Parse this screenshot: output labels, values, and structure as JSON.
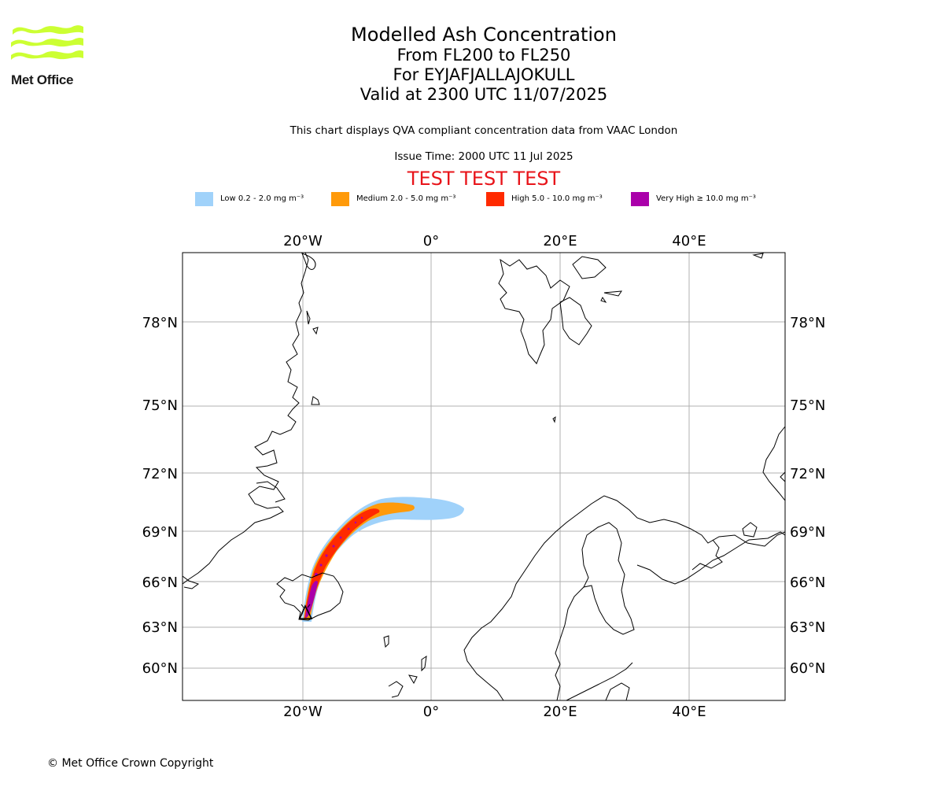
{
  "logo": {
    "text": "Met Office",
    "brand_color": "#ccff33"
  },
  "titles": {
    "main": "Modelled Ash Concentration",
    "levels": "From FL200 to FL250",
    "volcano": "For EYJAFJALLAJOKULL",
    "valid": "Valid at 2300 UTC 11/07/2025"
  },
  "description": "This chart displays QVA compliant concentration data from VAAC London",
  "issue_time": "Issue Time: 2000 UTC 11 Jul 2025",
  "test_banner": "TEST TEST TEST",
  "legend": [
    {
      "label": "Low 0.2 - 2.0 mg m⁻³",
      "color": "#a0d2fa"
    },
    {
      "label": "Medium 2.0 - 5.0 mg m⁻³",
      "color": "#ff9a0a"
    },
    {
      "label": "High 5.0 - 10.0 mg m⁻³",
      "color": "#ff2a00"
    },
    {
      "label": "Very High  ≥  10.0 mg m⁻³",
      "color": "#aa00aa"
    }
  ],
  "map": {
    "longitude_labels": [
      "20°W",
      "0°",
      "20°E",
      "40°E"
    ],
    "latitude_labels": [
      "78°N",
      "75°N",
      "72°N",
      "69°N",
      "66°N",
      "63°N",
      "60°N"
    ],
    "volcano_marker": "triangle-marker"
  },
  "copyright": "© Met Office Crown Copyright"
}
